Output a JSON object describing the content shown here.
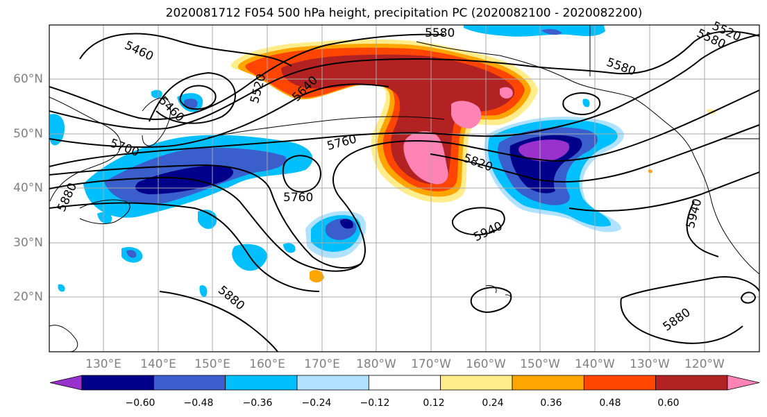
{
  "title": "2020081712 F054 500 hPa height, precipitation PC (2020082100 - 2020082200)",
  "lat_labels": [
    "60°N",
    "50°N",
    "40°N",
    "30°N",
    "20°N"
  ],
  "lon_labels": [
    "130°E",
    "140°E",
    "150°E",
    "160°E",
    "170°E",
    "180°W",
    "170°W",
    "160°W",
    "150°W",
    "140°W",
    "130°W",
    "120°W"
  ],
  "contour_labels": [
    "5460",
    "5460",
    "5520",
    "5640",
    "5580",
    "5520",
    "5580",
    "5580",
    "5700",
    "5760",
    "5760",
    "5820",
    "5880",
    "5940",
    "5940",
    "5880",
    "5880"
  ],
  "colorbar": {
    "ticks": [
      "−0.60",
      "−0.48",
      "−0.36",
      "−0.24",
      "−0.12",
      "0.12",
      "0.24",
      "0.36",
      "0.48",
      "0.60"
    ],
    "colors": [
      "#9932cc",
      "#00008b",
      "#3a5fcd",
      "#00bfff",
      "#b0e2ff",
      "#ffffff",
      "#ffec8b",
      "#ffa500",
      "#ff4500",
      "#b22222",
      "#ff83b4"
    ]
  },
  "colors": {
    "purple": "#9932cc",
    "navy": "#00008b",
    "blue": "#3a5fcd",
    "cyan": "#00bfff",
    "lightblue": "#b0e2ff",
    "yellow": "#ffec8b",
    "orange": "#ffa500",
    "red": "#ff4500",
    "darkred": "#b22222",
    "pink": "#ff83b4",
    "grid": "#a8a8a8",
    "axis_label": "#808080"
  }
}
